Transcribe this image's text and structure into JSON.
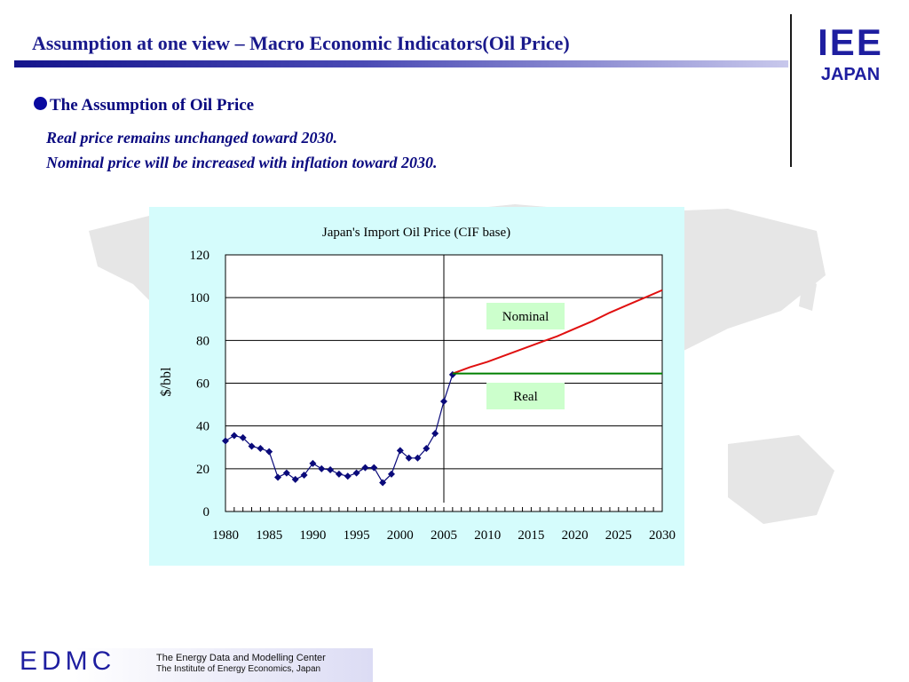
{
  "slide": {
    "title": "Assumption at one view – Macro Economic Indicators(Oil Price)",
    "bullet_heading": "The Assumption of Oil Price",
    "description_lines": [
      "Real price remains unchanged toward 2030.",
      "Nominal price will be increased with inflation toward 2030."
    ]
  },
  "logo": {
    "top_text": "IEE",
    "bottom_text": "JAPAN",
    "color": "#1e1ea0"
  },
  "footer": {
    "logo_text": "EDMC",
    "center_name": "The Energy Data and Modelling Center",
    "institute_name": "The Institute of Energy Economics, Japan"
  },
  "colors": {
    "title": "#1a1a8c",
    "historical_series": "#0a0a7a",
    "nominal_series": "#e01010",
    "real_series": "#008000",
    "chart_background": "#d5fcfc",
    "label_box": "#ccffcc"
  },
  "chart_data": {
    "type": "line",
    "title": "Japan's Import Oil Price (CIF base)",
    "xlabel": "",
    "ylabel": "$/bbl",
    "xlim": [
      1980,
      2030
    ],
    "ylim": [
      0,
      120
    ],
    "yticks": [
      0,
      20,
      40,
      60,
      80,
      100,
      120
    ],
    "xticks": [
      1980,
      1985,
      1990,
      1995,
      2000,
      2005,
      2010,
      2015,
      2020,
      2025,
      2030
    ],
    "grid": "horizontal",
    "divider_year": 2005,
    "series": [
      {
        "role": "historical",
        "markers": true,
        "x": [
          1980,
          1981,
          1982,
          1983,
          1984,
          1985,
          1986,
          1987,
          1988,
          1989,
          1990,
          1991,
          1992,
          1993,
          1994,
          1995,
          1996,
          1997,
          1998,
          1999,
          2000,
          2001,
          2002,
          2003,
          2004,
          2005,
          2006
        ],
        "values": [
          33,
          35.5,
          34.5,
          30.5,
          29.5,
          28,
          16,
          18,
          15,
          17,
          22.5,
          20,
          19.5,
          17.5,
          16.5,
          18,
          20.5,
          20.5,
          13.5,
          17.5,
          28.5,
          25,
          25,
          29.5,
          36.5,
          51.5,
          64
        ]
      },
      {
        "name": "Nominal",
        "x": [
          2006,
          2008,
          2010,
          2012,
          2014,
          2016,
          2018,
          2020,
          2022,
          2024,
          2026,
          2028,
          2030
        ],
        "values": [
          64.5,
          67.5,
          70,
          73,
          76,
          79,
          82,
          85.5,
          89,
          93,
          96.5,
          100,
          103.5
        ]
      },
      {
        "name": "Real",
        "x": [
          2006,
          2030
        ],
        "values": [
          64.5,
          64.5
        ]
      }
    ]
  }
}
